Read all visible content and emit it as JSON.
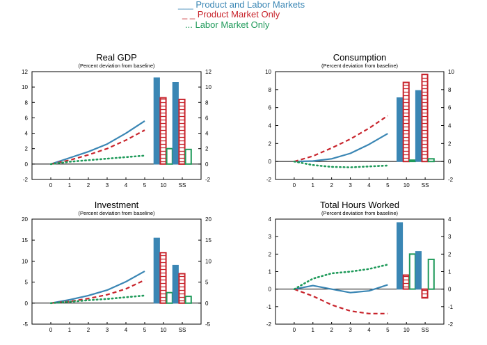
{
  "legend": {
    "items": [
      {
        "marker": "___",
        "label": "Product and Labor Markets",
        "color": "#3a86b4"
      },
      {
        "marker": "_ _",
        "label": "Product Market Only",
        "color": "#c8242c"
      },
      {
        "marker": "...",
        "label": "Labor Market Only",
        "color": "#1f9a5a"
      }
    ]
  },
  "chart_data": [
    {
      "type": "line",
      "title": "Real GDP",
      "subtitle": "(Percent deviation from baseline)",
      "x": [
        0,
        1,
        2,
        3,
        4,
        5
      ],
      "bar_categories": [
        "10",
        "SS"
      ],
      "ylim": [
        -2,
        12
      ],
      "yticks": [
        -2,
        0,
        2,
        4,
        6,
        8,
        10,
        12
      ],
      "series": [
        {
          "name": "Product and Labor Markets",
          "values": [
            0,
            0.8,
            1.6,
            2.6,
            4.0,
            5.6
          ],
          "bars": [
            11.2,
            10.6
          ]
        },
        {
          "name": "Product Market Only",
          "values": [
            0,
            0.5,
            1.2,
            2.0,
            3.1,
            4.4
          ],
          "bars": [
            8.6,
            8.4
          ]
        },
        {
          "name": "Labor Market Only",
          "values": [
            0,
            0.3,
            0.5,
            0.7,
            0.9,
            1.1
          ],
          "bars": [
            2.0,
            1.9
          ]
        }
      ]
    },
    {
      "type": "line",
      "title": "Consumption",
      "subtitle": "(Percent deviation from baseline)",
      "x": [
        0,
        1,
        2,
        3,
        4,
        5
      ],
      "bar_categories": [
        "10",
        "SS"
      ],
      "ylim": [
        -2,
        10
      ],
      "yticks": [
        -2,
        0,
        2,
        4,
        6,
        8,
        10
      ],
      "series": [
        {
          "name": "Product and Labor Markets",
          "values": [
            0,
            0.05,
            0.3,
            0.9,
            1.9,
            3.1
          ],
          "bars": [
            7.1,
            7.9
          ]
        },
        {
          "name": "Product Market Only",
          "values": [
            0,
            0.6,
            1.5,
            2.5,
            3.7,
            5.1
          ],
          "bars": [
            8.8,
            9.7
          ]
        },
        {
          "name": "Labor Market Only",
          "values": [
            0,
            -0.4,
            -0.6,
            -0.65,
            -0.55,
            -0.45
          ],
          "bars": [
            0.15,
            0.3
          ]
        }
      ]
    },
    {
      "type": "line",
      "title": "Investment",
      "subtitle": "(Percent deviation from baseline)",
      "x": [
        0,
        1,
        2,
        3,
        4,
        5
      ],
      "bar_categories": [
        "10",
        "SS"
      ],
      "ylim": [
        -5,
        20
      ],
      "yticks": [
        -5,
        0,
        5,
        10,
        15,
        20
      ],
      "series": [
        {
          "name": "Product and Labor Markets",
          "values": [
            0,
            0.8,
            1.8,
            3.1,
            5.1,
            7.6
          ],
          "bars": [
            15.5,
            9.0
          ]
        },
        {
          "name": "Product Market Only",
          "values": [
            0,
            0.4,
            1.1,
            2.0,
            3.4,
            5.5
          ],
          "bars": [
            12.0,
            7.0
          ]
        },
        {
          "name": "Labor Market Only",
          "values": [
            0,
            0.3,
            0.7,
            1.0,
            1.4,
            1.8
          ],
          "bars": [
            2.5,
            1.6
          ]
        }
      ]
    },
    {
      "type": "line",
      "title": "Total Hours Worked",
      "subtitle": "(Percent deviation from baseline)",
      "x": [
        0,
        1,
        2,
        3,
        4,
        5
      ],
      "bar_categories": [
        "10",
        "SS"
      ],
      "ylim": [
        -2,
        4
      ],
      "yticks": [
        -2,
        -1,
        0,
        1,
        2,
        3,
        4
      ],
      "series": [
        {
          "name": "Product and Labor Markets",
          "values": [
            0,
            0.2,
            0.0,
            -0.2,
            -0.1,
            0.25
          ],
          "bars": [
            3.8,
            2.15
          ]
        },
        {
          "name": "Product Market Only",
          "values": [
            0,
            -0.4,
            -0.9,
            -1.25,
            -1.4,
            -1.4
          ],
          "bars": [
            0.8,
            -0.5
          ]
        },
        {
          "name": "Labor Market Only",
          "values": [
            0,
            0.6,
            0.9,
            1.0,
            1.15,
            1.4
          ],
          "bars": [
            2.0,
            1.7
          ]
        }
      ]
    }
  ]
}
